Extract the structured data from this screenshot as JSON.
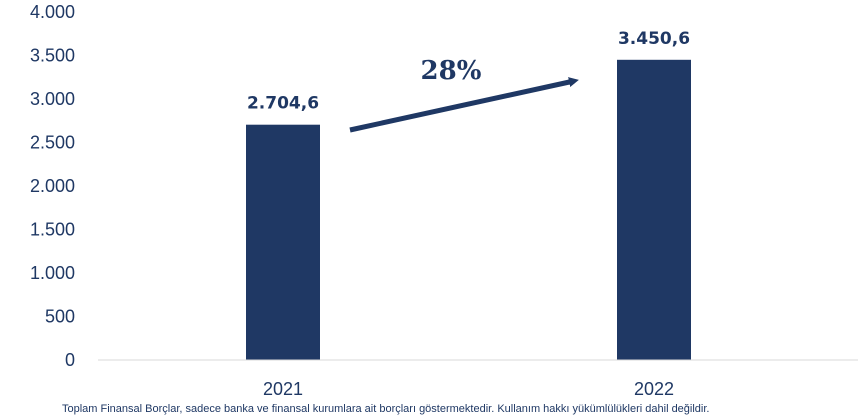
{
  "chart_data": {
    "type": "bar",
    "categories": [
      "2021",
      "2022"
    ],
    "values": [
      2704.6,
      3450.6
    ],
    "value_labels": [
      "2.704,6",
      "3.450,6"
    ],
    "ylim": [
      0,
      4000
    ],
    "y_ticks": [
      0,
      500,
      1000,
      1500,
      2000,
      2500,
      3000,
      3500,
      4000
    ],
    "y_tick_labels": [
      "0",
      "500",
      "1.000",
      "1.500",
      "2.000",
      "2.500",
      "3.000",
      "3.500",
      "4.000"
    ],
    "annotation": "28%",
    "grid": false,
    "legend": "none",
    "bar_color": "#1f3864",
    "footnote": "Toplam Finansal Borçlar, sadece banka ve finansal kurumlara ait borçları göstermektedir. Kullanım hakkı yükümlülükleri dahil değildir."
  }
}
